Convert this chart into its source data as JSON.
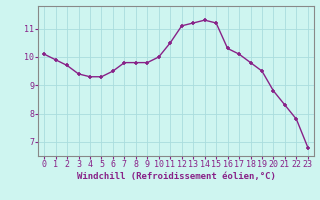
{
  "x": [
    0,
    1,
    2,
    3,
    4,
    5,
    6,
    7,
    8,
    9,
    10,
    11,
    12,
    13,
    14,
    15,
    16,
    17,
    18,
    19,
    20,
    21,
    22,
    23
  ],
  "y": [
    10.1,
    9.9,
    9.7,
    9.4,
    9.3,
    9.3,
    9.5,
    9.8,
    9.8,
    9.8,
    10.0,
    10.5,
    11.1,
    11.2,
    11.3,
    11.2,
    10.3,
    10.1,
    9.8,
    9.5,
    8.8,
    8.3,
    7.8,
    6.8
  ],
  "line_color": "#882288",
  "marker": "+",
  "marker_size": 3.5,
  "linewidth": 1.0,
  "xlabel": "Windchill (Refroidissement éolien,°C)",
  "xlabel_color": "#882288",
  "xlabel_fontsize": 6.5,
  "bg_color": "#cef5f0",
  "grid_color": "#aadddd",
  "tick_label_color": "#882288",
  "tick_fontsize": 6.0,
  "ylim": [
    6.5,
    11.8
  ],
  "yticks": [
    7,
    8,
    9,
    10,
    11
  ],
  "xtick_labels": [
    "0",
    "1",
    "2",
    "3",
    "4",
    "5",
    "6",
    "7",
    "8",
    "9",
    "10",
    "11",
    "12",
    "13",
    "14",
    "15",
    "16",
    "17",
    "18",
    "19",
    "20",
    "21",
    "22",
    "23"
  ],
  "spine_color": "#888888"
}
